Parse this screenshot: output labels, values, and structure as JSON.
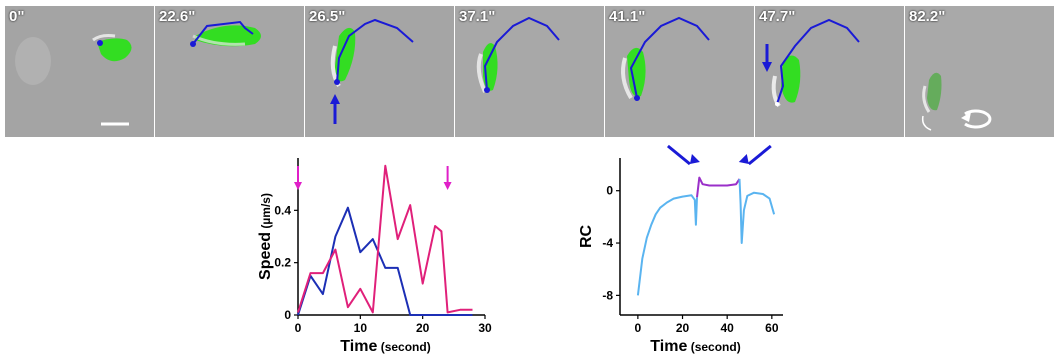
{
  "panels": [
    {
      "time_label": "0\""
    },
    {
      "time_label": "22.6\""
    },
    {
      "time_label": "26.5\""
    },
    {
      "time_label": "37.1\""
    },
    {
      "time_label": "41.1\""
    },
    {
      "time_label": "47.7\""
    },
    {
      "time_label": "82.2\""
    }
  ],
  "colors": {
    "track": "#1a1ad6",
    "cell_fluorescence": "#33dd22",
    "arrow_magenta": "#e01fc8",
    "speed_series_a": "#1c2fb5",
    "speed_series_b": "#e0207a",
    "rc_blue": "#5ab4f0",
    "rc_purple": "#9a2fc9"
  },
  "chart_data": [
    {
      "type": "line",
      "ylabel": "Speed",
      "ylabel_unit": "(µm/s)",
      "xlabel": "Time",
      "xlabel_unit": "(second)",
      "xlim": [
        0,
        30
      ],
      "ylim": [
        0,
        0.6
      ],
      "x_ticks": [
        "0",
        "10",
        "20",
        "30"
      ],
      "y_ticks": [
        "0",
        "0.2",
        "0.4"
      ],
      "arrows_at_x": [
        0,
        24
      ],
      "series": [
        {
          "color_key": "speed_series_a",
          "x": [
            0,
            2,
            4,
            6,
            8,
            10,
            12,
            14,
            16,
            18,
            20,
            22,
            24,
            26,
            28
          ],
          "values": [
            0.0,
            0.15,
            0.08,
            0.3,
            0.41,
            0.24,
            0.29,
            0.18,
            0.18,
            0.0,
            0.0,
            0.0,
            0.0,
            0.0,
            0.0
          ]
        },
        {
          "color_key": "speed_series_b",
          "x": [
            0,
            2,
            4,
            6,
            8,
            10,
            12,
            14,
            16,
            18,
            20,
            22,
            23,
            24,
            26,
            28
          ],
          "values": [
            0.01,
            0.16,
            0.16,
            0.25,
            0.03,
            0.1,
            0.01,
            0.57,
            0.29,
            0.42,
            0.12,
            0.34,
            0.32,
            0.01,
            0.02,
            0.02
          ]
        }
      ]
    },
    {
      "type": "line",
      "ylabel": "RC",
      "xlabel": "Time",
      "xlabel_unit": "(second)",
      "xlim": [
        -8,
        65
      ],
      "ylim": [
        -9.5,
        2.5
      ],
      "x_ticks": [
        "0",
        "20",
        "40",
        "60"
      ],
      "y_ticks": [
        "0",
        "-4",
        "-8"
      ],
      "arrows_at_x": [
        26,
        47
      ],
      "series": [
        {
          "color_key": "rc_blue",
          "x": [
            0,
            2,
            4,
            6,
            8,
            10,
            13,
            16,
            20,
            24,
            25.5,
            26,
            26.5
          ],
          "values": [
            -8.0,
            -5.2,
            -3.6,
            -2.6,
            -1.8,
            -1.3,
            -0.9,
            -0.6,
            -0.45,
            -0.35,
            -0.7,
            -2.6,
            -0.5
          ]
        },
        {
          "color_key": "rc_purple",
          "x": [
            26.5,
            27.5,
            29,
            32,
            36,
            40,
            44,
            45.5
          ],
          "values": [
            -0.5,
            1.0,
            0.5,
            0.4,
            0.4,
            0.4,
            0.5,
            0.9
          ]
        },
        {
          "color_key": "rc_blue",
          "x": [
            45.5,
            46,
            46.5,
            47.5,
            49,
            52,
            56,
            59,
            61
          ],
          "values": [
            0.9,
            -1.0,
            -4.0,
            -1.5,
            -0.4,
            -0.15,
            -0.25,
            -0.6,
            -1.8
          ]
        }
      ]
    }
  ]
}
